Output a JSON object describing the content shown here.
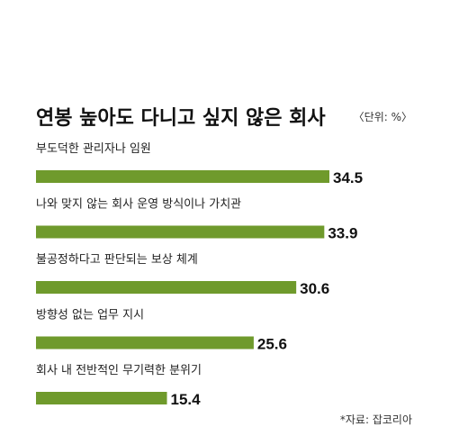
{
  "chart_data": {
    "type": "bar",
    "orientation": "horizontal",
    "title": "연봉 높아도 다니고 싶지 않은 회사",
    "unit_label": "〈단위: %〉",
    "source": "*자료: 잡코리아",
    "categories": [
      "부도덕한 관리자나 임원",
      "나와 맞지 않는 회사 운영 방식이나 가치관",
      "불공정하다고 판단되는 보상 체계",
      "방향성 없는 업무 지시",
      "회사 내 전반적인 무기력한 분위기"
    ],
    "values": [
      34.5,
      33.9,
      30.6,
      25.6,
      15.4
    ],
    "bar_color": "#6f9a2c",
    "xlim": [
      0,
      34.5
    ],
    "grid": false,
    "legend": "none"
  }
}
